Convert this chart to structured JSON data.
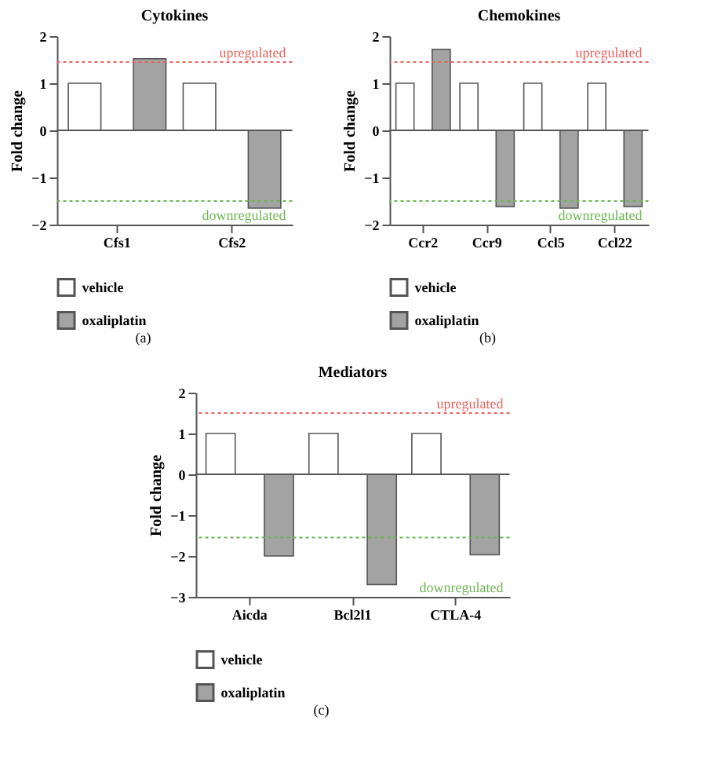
{
  "chart_data": [
    {
      "type": "bar",
      "title": "Cytokines",
      "ylabel": "Fold change",
      "categories": [
        "Cfs1",
        "Cfs2"
      ],
      "series": [
        {
          "name": "vehicle",
          "color": "#ffffff",
          "values": [
            1,
            1
          ]
        },
        {
          "name": "oxaliplatin",
          "color": "#a3a3a3",
          "values": [
            1.52,
            -1.65
          ]
        }
      ],
      "ylim": [
        -2,
        2
      ],
      "yticks": [
        -2,
        -1,
        0,
        1,
        2
      ],
      "legend": "bottom left",
      "ref_lines": [
        {
          "axis": "y",
          "value": 1.45,
          "label": "upregulated",
          "color": "#e8625e",
          "line_style": "dotted"
        },
        {
          "axis": "y",
          "value": -1.5,
          "label": "downregulated",
          "color": "#6fb552",
          "line_style": "dotted"
        }
      ],
      "annotations": [
        "(a)"
      ]
    },
    {
      "type": "bar",
      "title": "Chemokines",
      "ylabel": "Fold change",
      "categories": [
        "Ccr2",
        "Ccr9",
        "Ccl5",
        "Ccl22"
      ],
      "series": [
        {
          "name": "vehicle",
          "color": "#ffffff",
          "values": [
            1,
            1,
            1,
            1
          ]
        },
        {
          "name": "oxaliplatin",
          "color": "#a3a3a3",
          "values": [
            1.72,
            -1.62,
            -1.65,
            -1.62
          ]
        }
      ],
      "ylim": [
        -2,
        2
      ],
      "yticks": [
        -2,
        -1,
        0,
        1,
        2
      ],
      "legend": "bottom left",
      "ref_lines": [
        {
          "axis": "y",
          "value": 1.45,
          "label": "upregulated",
          "color": "#e8625e",
          "line_style": "dotted"
        },
        {
          "axis": "y",
          "value": -1.5,
          "label": "downregulated",
          "color": "#6fb552",
          "line_style": "dotted"
        }
      ],
      "annotations": [
        "(b)"
      ]
    },
    {
      "type": "bar",
      "title": "Mediators",
      "ylabel": "Fold change",
      "categories": [
        "Aicda",
        "Bcl2l1",
        "CTLA-4"
      ],
      "series": [
        {
          "name": "vehicle",
          "color": "#ffffff",
          "values": [
            1,
            1,
            1
          ]
        },
        {
          "name": "oxaliplatin",
          "color": "#a3a3a3",
          "values": [
            -2.0,
            -2.7,
            -1.97
          ]
        }
      ],
      "ylim": [
        -3,
        2
      ],
      "yticks": [
        -3,
        -2,
        -1,
        0,
        1,
        2
      ],
      "legend": "bottom left",
      "ref_lines": [
        {
          "axis": "y",
          "value": 1.5,
          "label": "upregulated",
          "color": "#e8625e",
          "line_style": "dotted"
        },
        {
          "axis": "y",
          "value": -1.55,
          "label": "downregulated",
          "color": "#6fb552",
          "line_style": "dotted"
        }
      ],
      "annotations": [
        "(c)"
      ]
    }
  ]
}
